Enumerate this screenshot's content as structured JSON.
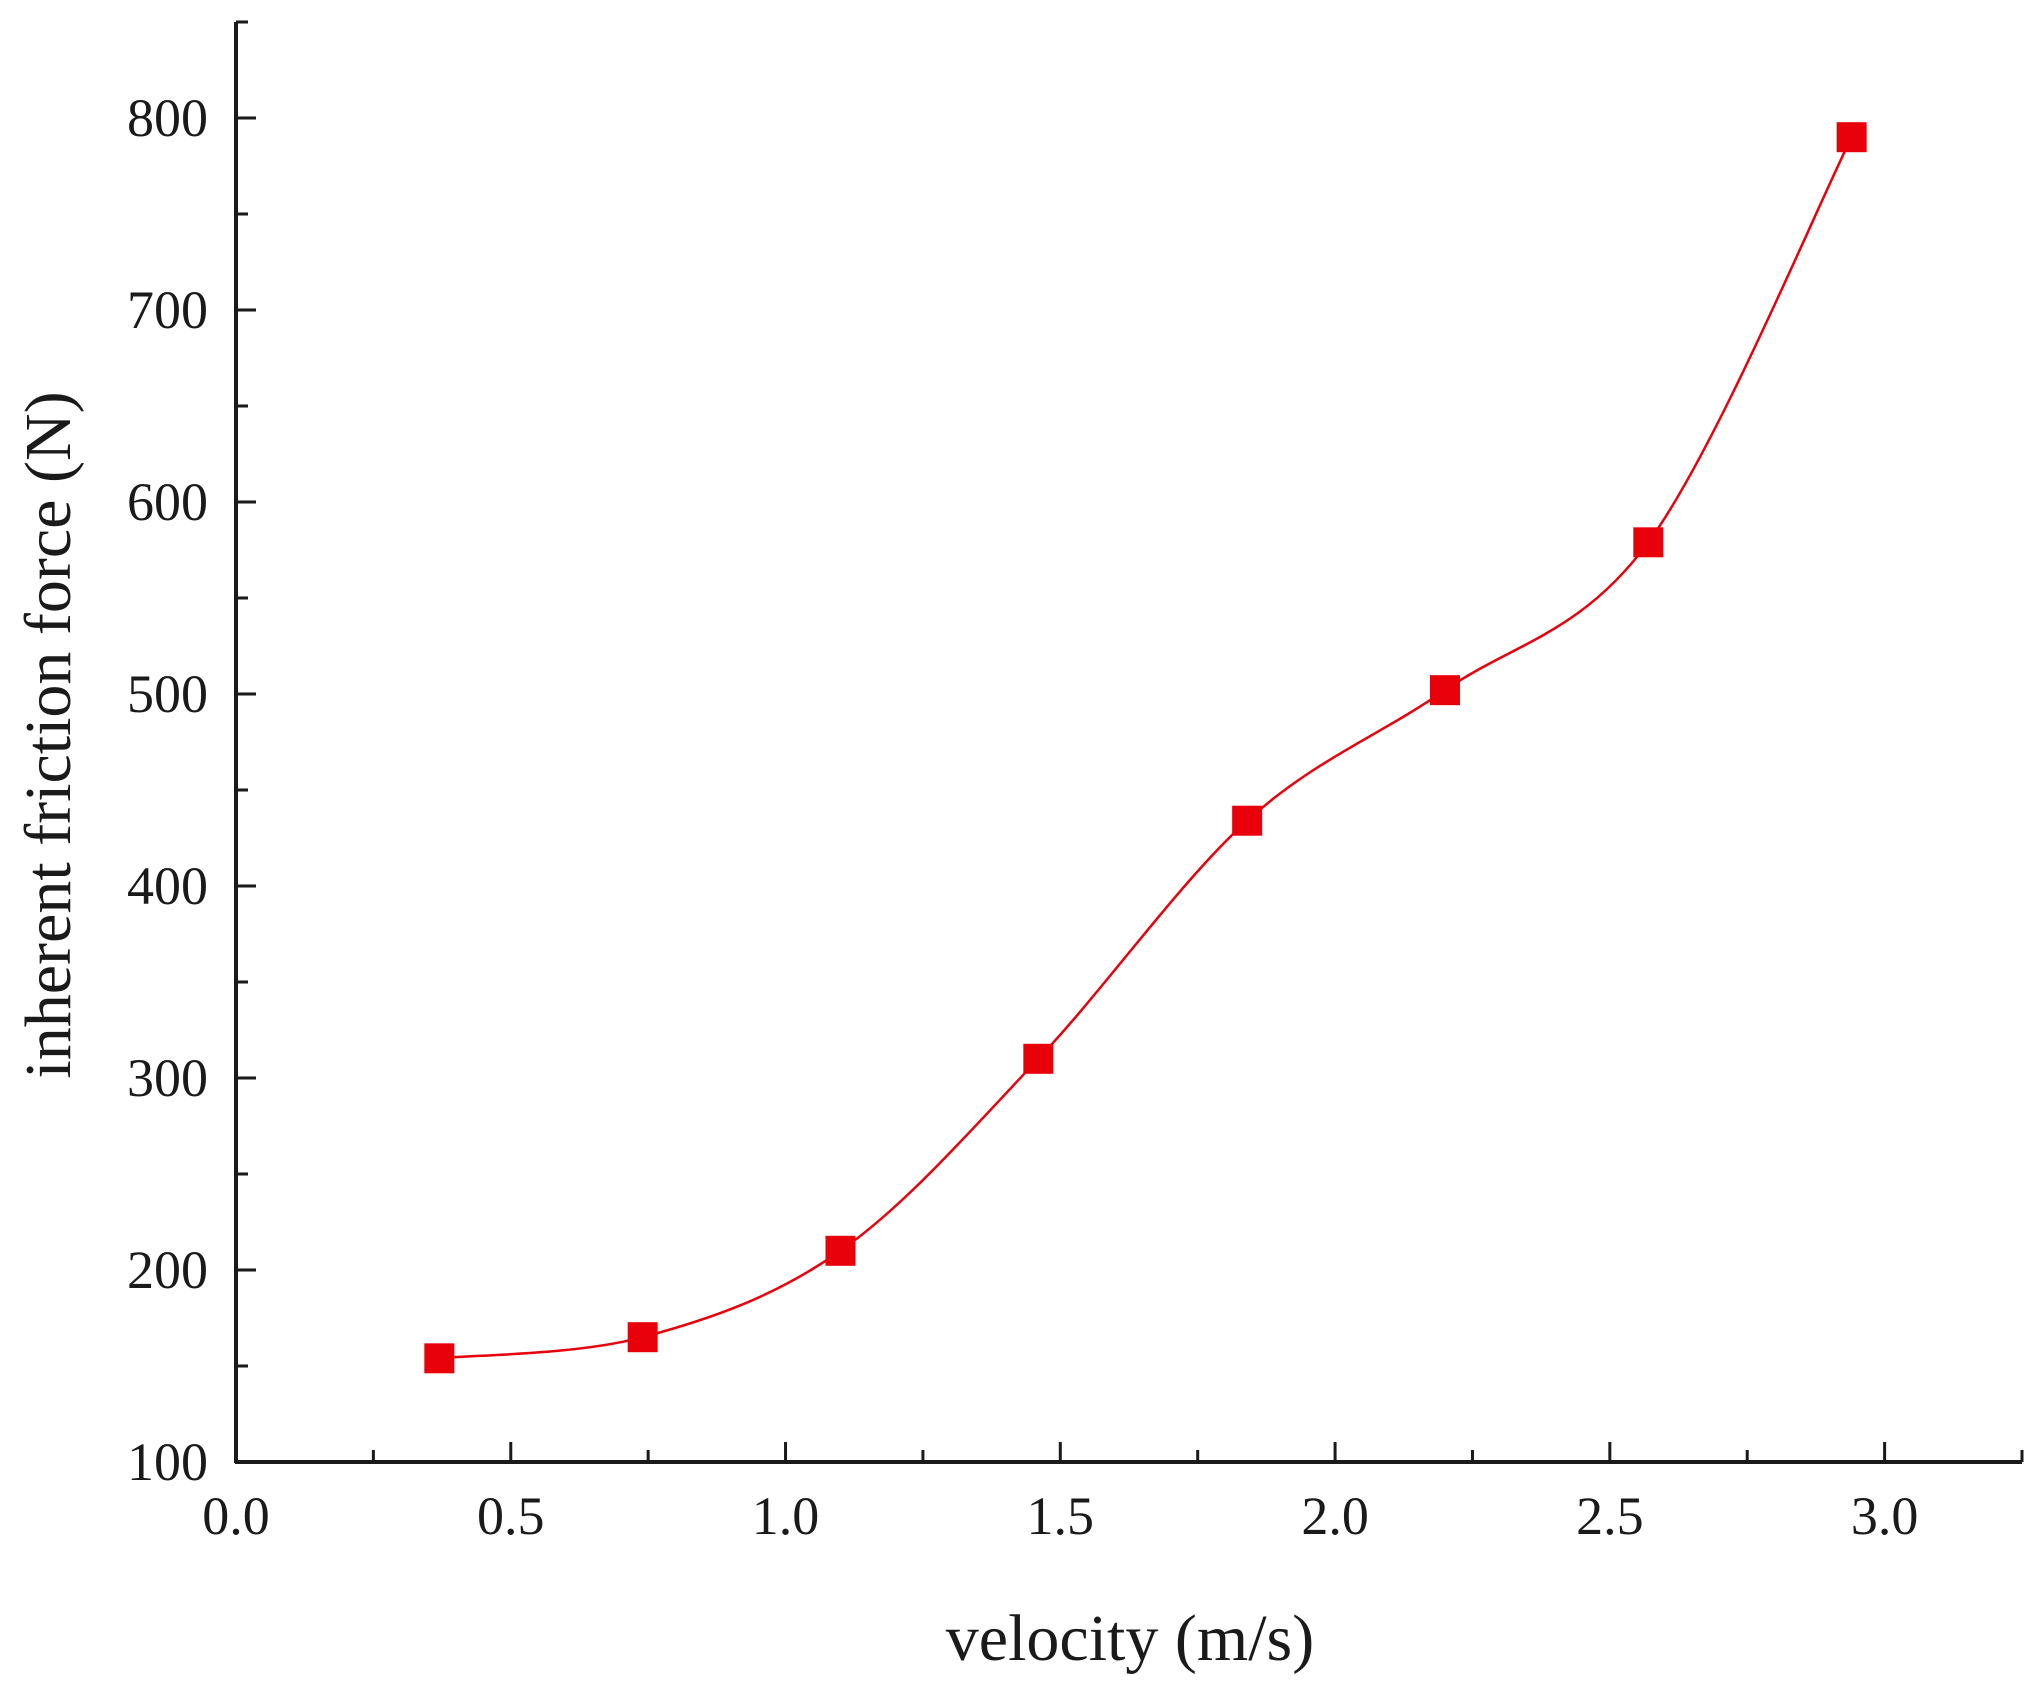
{
  "chart_data": {
    "type": "line",
    "title": "",
    "xlabel": "velocity (m/s)",
    "ylabel": "inherent friction force (N)",
    "xlim": [
      0.0,
      3.25
    ],
    "ylim": [
      100,
      850
    ],
    "grid": false,
    "x_ticks": [
      0.0,
      0.5,
      1.0,
      1.5,
      2.0,
      2.5,
      3.0
    ],
    "x_tick_labels": [
      "0.0",
      "0.5",
      "1.0",
      "1.5",
      "2.0",
      "2.5",
      "3.0"
    ],
    "y_ticks": [
      100,
      200,
      300,
      400,
      500,
      600,
      700,
      800
    ],
    "y_tick_labels": [
      "100",
      "200",
      "300",
      "400",
      "500",
      "600",
      "700",
      "800"
    ],
    "series": [
      {
        "name": "inherent friction force",
        "marker": "square",
        "line_style": "smooth",
        "x": [
          0.37,
          0.74,
          1.1,
          1.46,
          1.84,
          2.2,
          2.57,
          2.94
        ],
        "y": [
          154,
          165,
          210,
          310,
          434,
          502,
          579,
          790
        ]
      }
    ],
    "colors": {
      "series": "#e8000b",
      "axis": "#1a1a1a"
    }
  }
}
